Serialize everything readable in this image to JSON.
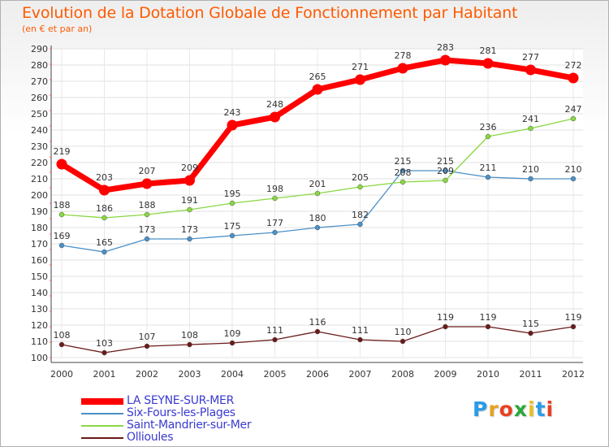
{
  "title": "Evolution de la Dotation Globale de Fonctionnement par Habitant",
  "subtitle": "(en € et par an)",
  "logo": {
    "text": "Proxiti",
    "colors": [
      "#2a9be8",
      "#e8a020",
      "#e84020",
      "#2aa83a",
      "#e8c020",
      "#2a9be8",
      "#e84020"
    ]
  },
  "chart_data": {
    "type": "line",
    "x": [
      2000,
      2001,
      2002,
      2003,
      2004,
      2005,
      2006,
      2007,
      2008,
      2009,
      2010,
      2011,
      2012
    ],
    "ylim": [
      100,
      290
    ],
    "yticks": [
      100,
      110,
      120,
      130,
      140,
      150,
      160,
      170,
      180,
      190,
      200,
      210,
      220,
      230,
      240,
      250,
      260,
      270,
      280,
      290
    ],
    "grid": true,
    "legend_placement": "bottom-left",
    "series": [
      {
        "name": "LA SEYNE-SUR-MER",
        "color": "#ff0000",
        "values": [
          219,
          203,
          207,
          209,
          243,
          248,
          265,
          271,
          278,
          283,
          281,
          277,
          272
        ]
      },
      {
        "name": "Six-Fours-les-Plages",
        "color": "#4a90c8",
        "values": [
          169,
          165,
          173,
          173,
          175,
          177,
          180,
          182,
          215,
          215,
          211,
          210,
          210
        ]
      },
      {
        "name": "Saint-Mandrier-sur-Mer",
        "color": "#88d840",
        "values": [
          188,
          186,
          188,
          191,
          195,
          198,
          201,
          205,
          208,
          209,
          236,
          241,
          247
        ]
      },
      {
        "name": "Ollioules",
        "color": "#6b1a1a",
        "values": [
          108,
          103,
          107,
          108,
          109,
          111,
          116,
          111,
          110,
          119,
          119,
          115,
          119
        ]
      }
    ]
  }
}
